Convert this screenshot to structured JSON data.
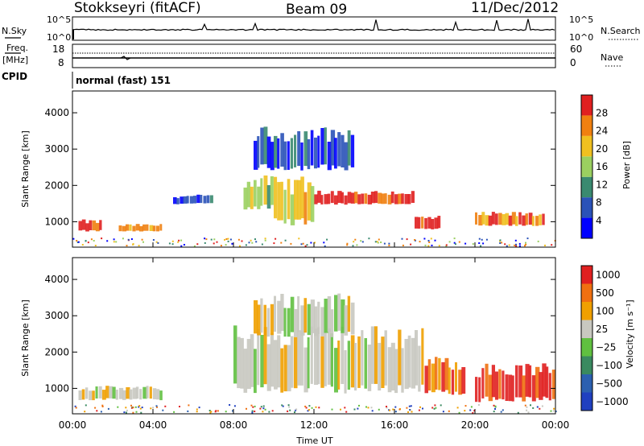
{
  "header": {
    "station": "Stokkseyri (fitACF)",
    "beam": "Beam 09",
    "date": "11/Dec/2012"
  },
  "panels": {
    "nsky": {
      "label": "N.Sky",
      "right_label": "N.Search",
      "left_ticks": [
        "10^5",
        "10^0"
      ],
      "right_ticks": [
        "10^5",
        "10^0"
      ]
    },
    "freq": {
      "label_line1": "Freq.",
      "label_line2": "[MHz]",
      "right_label": "Nave",
      "left_ticks": [
        "18",
        "8"
      ],
      "right_ticks": [
        "60",
        "0"
      ]
    },
    "cpid": {
      "label": "CPID",
      "text": "normal (fast) 151"
    }
  },
  "chart_data": [
    {
      "type": "heatmap",
      "name": "power",
      "ylabel": "Slant Range [km]",
      "yticks": [
        "1000",
        "2000",
        "3000",
        "4000"
      ],
      "ylim": [
        300,
        4600
      ],
      "colorbar": {
        "label": "Power [dB]",
        "ticks": [
          "4",
          "8",
          "12",
          "16",
          "20",
          "24",
          "28"
        ],
        "colors": [
          "#0000ff",
          "#2a52b8",
          "#3a8a70",
          "#9bd060",
          "#f0c020",
          "#f08010",
          "#e02020"
        ]
      },
      "regions": [
        {
          "t0": 0.3,
          "t1": 1.5,
          "r0": 750,
          "r1": 1000,
          "level": 6
        },
        {
          "t0": 2.3,
          "t1": 4.5,
          "r0": 740,
          "r1": 900,
          "level": 5
        },
        {
          "t0": 5.0,
          "t1": 7.0,
          "r0": 1500,
          "r1": 1700,
          "level": 1
        },
        {
          "t0": 12.0,
          "t1": 17.0,
          "r0": 1500,
          "r1": 1800,
          "level": 6
        },
        {
          "t0": 17.0,
          "t1": 18.3,
          "r0": 800,
          "r1": 1100,
          "level": 6
        },
        {
          "t0": 20.0,
          "t1": 23.5,
          "r0": 900,
          "r1": 1200,
          "level": 5
        },
        {
          "t0": 8.5,
          "t1": 10.0,
          "r0": 1400,
          "r1": 2100,
          "level": 3
        },
        {
          "t0": 10.0,
          "t1": 12.0,
          "r0": 1000,
          "r1": 2000,
          "level": 4
        },
        {
          "t0": 9.0,
          "t1": 14.0,
          "r0": 2500,
          "r1": 3400,
          "level": 1
        }
      ]
    },
    {
      "type": "heatmap",
      "name": "velocity",
      "ylabel": "Slant Range [km]",
      "yticks": [
        "1000",
        "2000",
        "3000",
        "4000"
      ],
      "ylim": [
        300,
        4600
      ],
      "colorbar": {
        "label": "Velocity [m s⁻¹]",
        "ticks": [
          "1000",
          "500",
          "100",
          "25",
          "−25",
          "−100",
          "−500",
          "−1000"
        ],
        "colors": [
          "#2040c0",
          "#2c60b0",
          "#3a8a60",
          "#60c040",
          "#c8c8c0",
          "#f0a000",
          "#f07010",
          "#e02020"
        ]
      },
      "regions": [
        {
          "t0": 0.3,
          "t1": 4.5,
          "r0": 700,
          "r1": 1000,
          "level": 4
        },
        {
          "t0": 8.0,
          "t1": 17.5,
          "r0": 1000,
          "r1": 2400,
          "level": 4
        },
        {
          "t0": 9.0,
          "t1": 14.0,
          "r0": 2500,
          "r1": 3400,
          "level": 4
        },
        {
          "t0": 17.5,
          "t1": 19.5,
          "r0": 900,
          "r1": 1700,
          "level": 6
        },
        {
          "t0": 20.0,
          "t1": 24.0,
          "r0": 700,
          "r1": 1500,
          "level": 7
        }
      ]
    }
  ],
  "xaxis": {
    "label": "Time UT",
    "ticks": [
      "00:00",
      "04:00",
      "08:00",
      "12:00",
      "16:00",
      "20:00",
      "00:00"
    ],
    "xlim": [
      0,
      24
    ]
  }
}
